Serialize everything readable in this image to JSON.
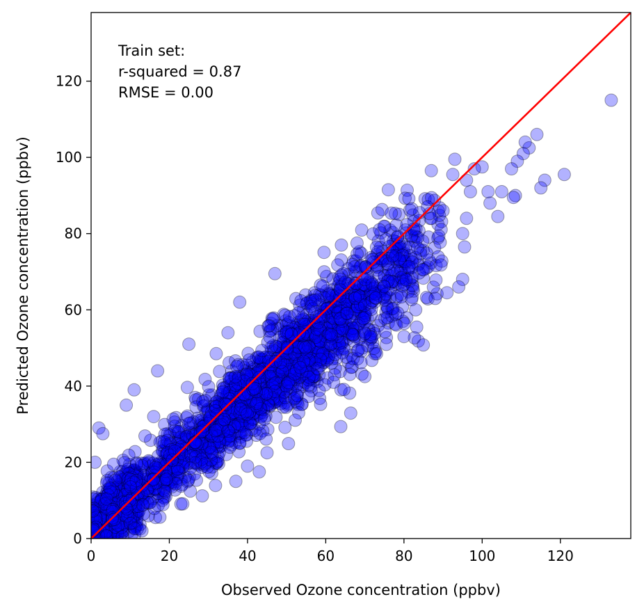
{
  "chart_data": {
    "type": "scatter",
    "xlabel": "Observed Ozone concentration (ppbv)",
    "ylabel": "Predicted Ozone concentration (ppbv)",
    "xlim": [
      0,
      138
    ],
    "ylim": [
      0,
      138
    ],
    "x_ticks": [
      0,
      20,
      40,
      60,
      80,
      100,
      120
    ],
    "y_ticks": [
      0,
      20,
      40,
      60,
      80,
      100,
      120
    ],
    "tick_labels_x": [
      "0",
      "20",
      "40",
      "60",
      "80",
      "100",
      "120"
    ],
    "tick_labels_y": [
      "0",
      "20",
      "40",
      "60",
      "80",
      "100",
      "120"
    ],
    "grid": false,
    "annotation": [
      "Train set:",
      "r-squared = 0.87",
      "RMSE = 0.00"
    ],
    "marker_color": "#0000ff",
    "marker_alpha": 0.3,
    "marker_edge_color": "#000000",
    "reference_line": {
      "x": [
        0,
        138
      ],
      "y": [
        0,
        138
      ],
      "color": "#ff0000"
    },
    "outlier_points": [
      [
        133,
        115
      ],
      [
        121,
        95.5
      ],
      [
        116,
        94
      ],
      [
        115,
        92
      ],
      [
        114,
        106
      ],
      [
        112,
        102.5
      ],
      [
        111,
        104
      ],
      [
        110.5,
        101
      ],
      [
        109,
        99
      ],
      [
        108.5,
        90
      ],
      [
        108,
        89.5
      ],
      [
        107.5,
        97
      ],
      [
        105,
        91
      ],
      [
        104,
        84.5
      ],
      [
        102,
        88
      ],
      [
        101.5,
        91
      ],
      [
        100,
        97.5
      ],
      [
        98,
        97
      ],
      [
        97,
        91
      ],
      [
        96,
        94
      ],
      [
        95.5,
        76.5
      ],
      [
        95,
        68
      ],
      [
        93,
        99.5
      ],
      [
        92.5,
        95.5
      ],
      [
        87,
        96.5
      ],
      [
        76,
        91.5
      ],
      [
        64,
        77
      ],
      [
        68,
        77.5
      ],
      [
        47,
        69.5
      ],
      [
        35,
        54
      ],
      [
        38,
        62
      ],
      [
        32,
        48.5
      ],
      [
        25,
        51
      ],
      [
        17,
        44
      ],
      [
        16,
        32
      ],
      [
        11,
        39
      ],
      [
        9,
        35
      ],
      [
        2,
        29
      ],
      [
        3,
        27.5
      ],
      [
        1,
        20
      ],
      [
        0.5,
        2
      ],
      [
        8,
        0.5
      ],
      [
        13,
        2
      ],
      [
        40,
        19
      ],
      [
        43,
        17.5
      ],
      [
        45,
        22.5
      ],
      [
        37,
        15
      ],
      [
        62,
        41
      ],
      [
        70,
        42.5
      ],
      [
        73,
        48.5
      ],
      [
        80,
        53
      ],
      [
        83,
        60
      ],
      [
        88,
        63
      ],
      [
        91,
        64.5
      ],
      [
        94,
        66
      ],
      [
        85,
        70.5
      ],
      [
        95,
        80
      ],
      [
        96,
        84
      ],
      [
        90,
        86
      ],
      [
        86,
        87
      ],
      [
        84,
        85.5
      ],
      [
        82,
        86.5
      ]
    ],
    "band": {
      "x_range": [
        0,
        90
      ],
      "center_slope": 0.87,
      "center_intercept": 2,
      "half_width": [
        6,
        14
      ]
    }
  }
}
